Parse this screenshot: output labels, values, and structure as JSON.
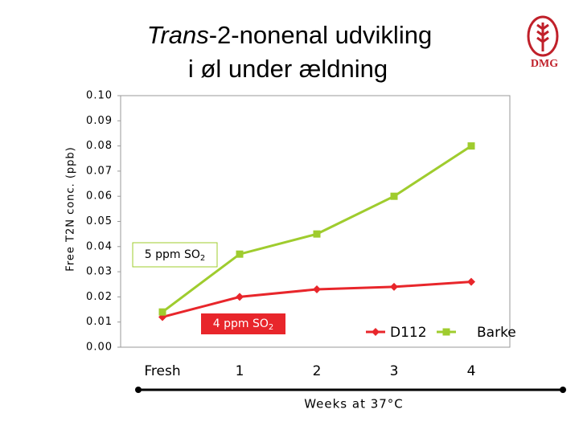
{
  "chart_data": {
    "type": "line",
    "title": {
      "italic": "Trans",
      "rest": "-2-nonenal udvikling",
      "line2": "i øl under ældning"
    },
    "logo": "DMG",
    "y_label": "Free T2N conc. (ppb)",
    "x_label": "Weeks at 37°C",
    "categories": [
      "Fresh",
      "1",
      "2",
      "3",
      "4"
    ],
    "series": [
      {
        "name": "D112",
        "color": "#e8262b",
        "marker": "diamond",
        "values": [
          0.012,
          0.02,
          0.023,
          0.024,
          0.026
        ]
      },
      {
        "name": "Barke",
        "color": "#9fcc2e",
        "marker": "square",
        "values": [
          0.014,
          0.037,
          0.045,
          0.06,
          0.08
        ]
      }
    ],
    "annotations": [
      {
        "text": "5 ppm SO",
        "sub": "2"
      },
      {
        "text": "4 ppm SO",
        "sub": "2"
      }
    ],
    "ylim": [
      0,
      0.1
    ],
    "yticks": [
      {
        "value": 0,
        "label": "0.00"
      },
      0.01,
      0.02,
      0.03,
      0.04,
      0.05,
      0.06,
      0.07,
      0.08,
      0.09,
      {
        "value": 0.1,
        "label": "0.10"
      }
    ],
    "grid": false,
    "legend": "lower right"
  }
}
